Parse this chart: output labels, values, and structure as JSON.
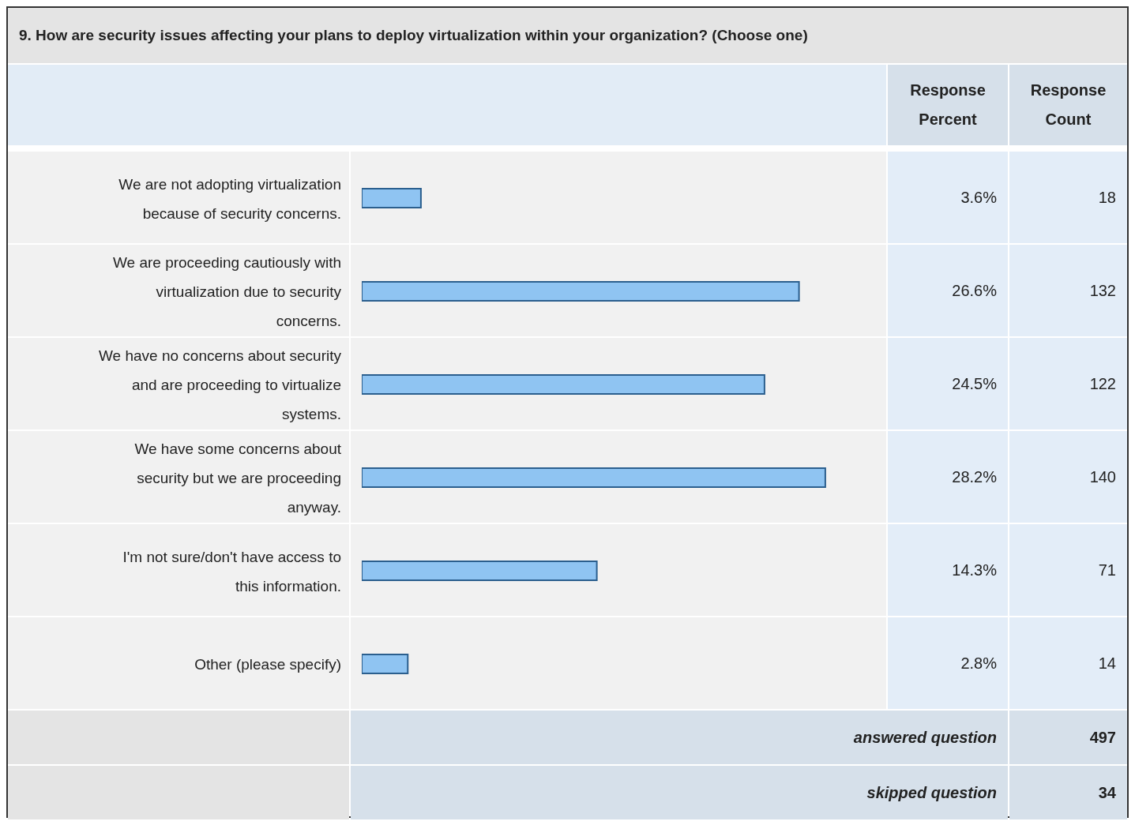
{
  "chart_data": {
    "type": "bar",
    "orientation": "horizontal",
    "title": "9. How are security issues affecting your plans to deploy virtualization within your organization? (Choose one)",
    "categories": [
      "We are not adopting virtualization because of security concerns.",
      "We are proceeding cautiously with virtualization due to security concerns.",
      "We have no concerns about security and are proceeding to virtualize systems.",
      "We have some concerns about security but we are proceeding anyway.",
      "I'm not sure/don't have access to this information.",
      "Other (please specify)"
    ],
    "series": [
      {
        "name": "Response Percent",
        "color": "#8fc4f2",
        "values": [
          3.6,
          26.6,
          24.5,
          28.2,
          14.3,
          2.8
        ],
        "value_labels": [
          "3.6%",
          "26.6%",
          "24.5%",
          "28.2%",
          "14.3%",
          "2.8%"
        ]
      }
    ],
    "tick_labels": "y",
    "annotations": [
      "Response Count",
      "18",
      "132",
      "122",
      "140",
      "71",
      "14",
      "answered question",
      "497",
      "skipped question",
      "34"
    ]
  }
}
